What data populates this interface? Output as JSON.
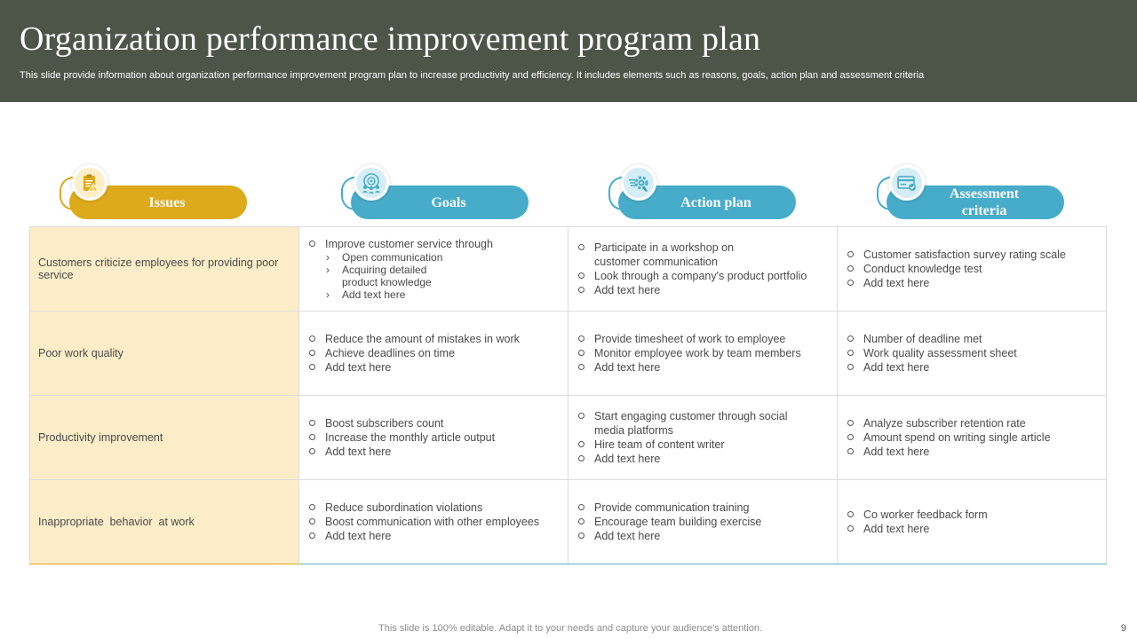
{
  "slide": {
    "title": "Organization performance improvement program plan",
    "subtitle": "This slide provide information about organization performance improvement program plan to increase productivity and efficiency. It includes elements such as reasons, goals, action plan and assessment criteria",
    "footer": "This slide is 100% editable. Adapt it to your needs and capture your audience's attention.",
    "page_number": "9"
  },
  "colors": {
    "header_bg": "#4d5548",
    "issues_accent": "#ddaa1c",
    "blue_accent": "#47acc9",
    "issue_cell_bg": "#fcedc8"
  },
  "headers": [
    {
      "label": "Issues",
      "icon": "clipboard-warning-icon"
    },
    {
      "label": "Goals",
      "icon": "team-target-icon"
    },
    {
      "label": "Action plan",
      "icon": "gear-speed-icon"
    },
    {
      "label": "Assessment criteria",
      "icon": "credit-card-check-icon"
    }
  ],
  "rows": [
    {
      "issue": "Customers criticize employees for providing poor service",
      "goals": {
        "items": [
          "Improve  customer service through"
        ],
        "sub": [
          "Open communication",
          "Acquiring detailed product knowledge",
          "Add text here"
        ]
      },
      "action": [
        "Participate in a workshop on customer communication",
        "Look through a company's product portfolio",
        "Add text here"
      ],
      "assessment": [
        "Customer satisfaction survey rating scale",
        "Conduct knowledge test",
        "Add text here"
      ]
    },
    {
      "issue": "Poor work quality",
      "goals": {
        "items": [
          "Reduce the amount of mistakes in work",
          "Achieve deadlines on time",
          "Add text here"
        ]
      },
      "action": [
        "Provide  timesheet of work to employee",
        "Monitor employee work by team members",
        "Add text here"
      ],
      "assessment": [
        "Number of deadline met",
        "Work quality assessment sheet",
        "Add text here"
      ]
    },
    {
      "issue": "Productivity improvement",
      "goals": {
        "items": [
          "Boost subscribers count",
          "Increase the monthly article output",
          "Add text here"
        ]
      },
      "action": [
        "Start engaging customer through social media platforms",
        "Hire team of content writer",
        "Add text here"
      ],
      "assessment": [
        "Analyze subscriber retention rate",
        "Amount spend on writing single article",
        "Add text here"
      ]
    },
    {
      "issue": "Inappropriate  behavior  at work",
      "goals": {
        "items": [
          "Reduce subordination violations",
          "Boost communication with other employees",
          "Add text here"
        ]
      },
      "action": [
        "Provide  communication training",
        "Encourage team building exercise",
        "Add text here"
      ],
      "assessment": [
        "Co worker feedback form",
        "Add text here"
      ]
    }
  ]
}
